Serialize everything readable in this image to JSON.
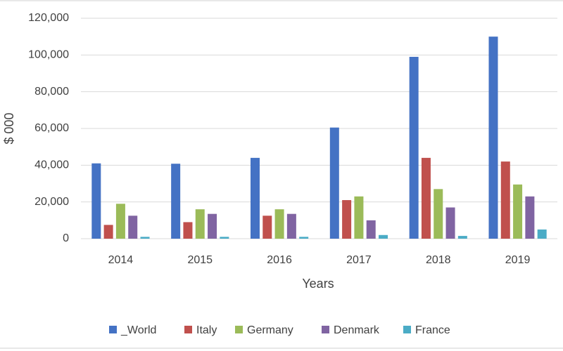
{
  "chart_data": {
    "type": "bar",
    "x_label": "Years",
    "y_label": "$ 000",
    "categories": [
      "2014",
      "2015",
      "2016",
      "2017",
      "2018",
      "2019"
    ],
    "series": [
      {
        "name": "_World",
        "color": "#4472c4",
        "values": [
          41000,
          40800,
          44000,
          60500,
          99000,
          110000
        ]
      },
      {
        "name": "Italy",
        "color": "#c0504d",
        "values": [
          7500,
          9000,
          12500,
          21000,
          44000,
          42000
        ]
      },
      {
        "name": "Germany",
        "color": "#9bbb59",
        "values": [
          19000,
          16000,
          16000,
          23000,
          27000,
          29500
        ]
      },
      {
        "name": "Denmark",
        "color": "#8064a2",
        "values": [
          12500,
          13500,
          13500,
          10000,
          17000,
          23000
        ]
      },
      {
        "name": "France",
        "color": "#4bacc6",
        "values": [
          1000,
          1000,
          1000,
          2000,
          1500,
          5000
        ]
      }
    ],
    "ylim": [
      0,
      120000
    ],
    "yticks": [
      0,
      {
        "value": 20000,
        "label": "20,000"
      },
      {
        "value": 40000,
        "label": "40,000"
      },
      {
        "value": 60000,
        "label": "60,000"
      },
      {
        "value": 80000,
        "label": "80,000"
      },
      {
        "value": 100000,
        "label": "100,000"
      },
      {
        "value": 120000,
        "label": "120,000"
      }
    ],
    "grid": true
  }
}
